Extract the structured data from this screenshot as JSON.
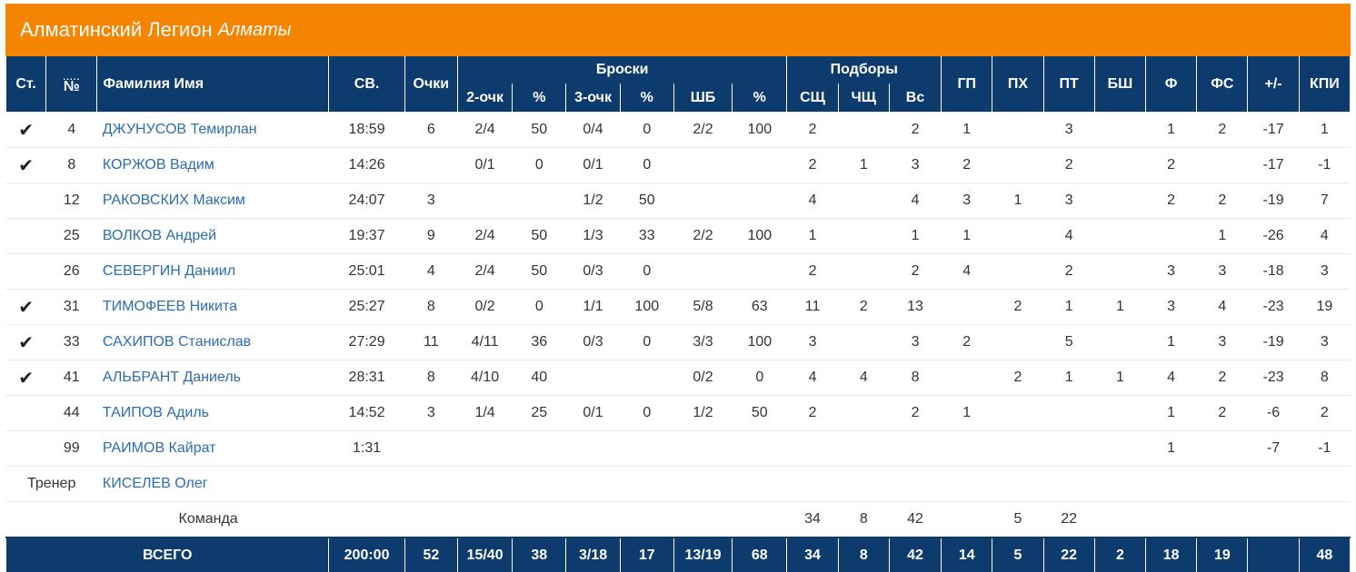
{
  "header": {
    "team": "Алматинский Легион",
    "city": "Алматы"
  },
  "columns": {
    "st": "Ст.",
    "num": "№",
    "name": "Фамилия Имя",
    "min": "СВ.",
    "pts": "Очки",
    "throws": "Броски",
    "rebounds": "Подборы",
    "two": "2-очк",
    "two_pct": "%",
    "three": "3-очк",
    "three_pct": "%",
    "ft": "ШБ",
    "ft_pct": "%",
    "off": "СЩ",
    "def": "ЧЩ",
    "tot": "Вс",
    "ast": "ГП",
    "stl": "ПХ",
    "to": "ПТ",
    "blk": "БШ",
    "pf": "Ф",
    "fd": "ФС",
    "pm": "+/-",
    "eff": "КПИ"
  },
  "players": [
    {
      "st": "✔",
      "num": "4",
      "name": "ДЖУНУСОВ Темирлан",
      "min": "18:59",
      "pts": "6",
      "two": "2/4",
      "two_pct": "50",
      "three": "0/4",
      "three_pct": "0",
      "ft": "2/2",
      "ft_pct": "100",
      "off": "2",
      "def": "",
      "tot": "2",
      "ast": "1",
      "stl": "",
      "to": "3",
      "blk": "",
      "pf": "1",
      "fd": "2",
      "pm": "-17",
      "eff": "1"
    },
    {
      "st": "✔",
      "num": "8",
      "name": "КОРЖОВ Вадим",
      "min": "14:26",
      "pts": "",
      "two": "0/1",
      "two_pct": "0",
      "three": "0/1",
      "three_pct": "0",
      "ft": "",
      "ft_pct": "",
      "off": "2",
      "def": "1",
      "tot": "3",
      "ast": "2",
      "stl": "",
      "to": "2",
      "blk": "",
      "pf": "2",
      "fd": "",
      "pm": "-17",
      "eff": "-1"
    },
    {
      "st": "",
      "num": "12",
      "name": "РАКОВСКИХ Максим",
      "min": "24:07",
      "pts": "3",
      "two": "",
      "two_pct": "",
      "three": "1/2",
      "three_pct": "50",
      "ft": "",
      "ft_pct": "",
      "off": "4",
      "def": "",
      "tot": "4",
      "ast": "3",
      "stl": "1",
      "to": "3",
      "blk": "",
      "pf": "2",
      "fd": "2",
      "pm": "-19",
      "eff": "7"
    },
    {
      "st": "",
      "num": "25",
      "name": "ВОЛКОВ Андрей",
      "min": "19:37",
      "pts": "9",
      "two": "2/4",
      "two_pct": "50",
      "three": "1/3",
      "three_pct": "33",
      "ft": "2/2",
      "ft_pct": "100",
      "off": "1",
      "def": "",
      "tot": "1",
      "ast": "1",
      "stl": "",
      "to": "4",
      "blk": "",
      "pf": "",
      "fd": "1",
      "pm": "-26",
      "eff": "4"
    },
    {
      "st": "",
      "num": "26",
      "name": "СЕВЕРГИН Даниил",
      "min": "25:01",
      "pts": "4",
      "two": "2/4",
      "two_pct": "50",
      "three": "0/3",
      "three_pct": "0",
      "ft": "",
      "ft_pct": "",
      "off": "2",
      "def": "",
      "tot": "2",
      "ast": "4",
      "stl": "",
      "to": "2",
      "blk": "",
      "pf": "3",
      "fd": "3",
      "pm": "-18",
      "eff": "3"
    },
    {
      "st": "✔",
      "num": "31",
      "name": "ТИМОФЕЕВ Никита",
      "min": "25:27",
      "pts": "8",
      "two": "0/2",
      "two_pct": "0",
      "three": "1/1",
      "three_pct": "100",
      "ft": "5/8",
      "ft_pct": "63",
      "off": "11",
      "def": "2",
      "tot": "13",
      "ast": "",
      "stl": "2",
      "to": "1",
      "blk": "1",
      "pf": "3",
      "fd": "4",
      "pm": "-23",
      "eff": "19"
    },
    {
      "st": "✔",
      "num": "33",
      "name": "САХИПОВ Станислав",
      "min": "27:29",
      "pts": "11",
      "two": "4/11",
      "two_pct": "36",
      "three": "0/3",
      "three_pct": "0",
      "ft": "3/3",
      "ft_pct": "100",
      "off": "3",
      "def": "",
      "tot": "3",
      "ast": "2",
      "stl": "",
      "to": "5",
      "blk": "",
      "pf": "1",
      "fd": "3",
      "pm": "-19",
      "eff": "3"
    },
    {
      "st": "✔",
      "num": "41",
      "name": "АЛЬБРАНТ Даниель",
      "min": "28:31",
      "pts": "8",
      "two": "4/10",
      "two_pct": "40",
      "three": "",
      "three_pct": "",
      "ft": "0/2",
      "ft_pct": "0",
      "off": "4",
      "def": "4",
      "tot": "8",
      "ast": "",
      "stl": "2",
      "to": "1",
      "blk": "1",
      "pf": "4",
      "fd": "2",
      "pm": "-23",
      "eff": "8"
    },
    {
      "st": "",
      "num": "44",
      "name": "ТАИПОВ Адиль",
      "min": "14:52",
      "pts": "3",
      "two": "1/4",
      "two_pct": "25",
      "three": "0/1",
      "three_pct": "0",
      "ft": "1/2",
      "ft_pct": "50",
      "off": "2",
      "def": "",
      "tot": "2",
      "ast": "1",
      "stl": "",
      "to": "",
      "blk": "",
      "pf": "1",
      "fd": "2",
      "pm": "-6",
      "eff": "2"
    },
    {
      "st": "",
      "num": "99",
      "name": "РАИМОВ Кайрат",
      "min": "1:31",
      "pts": "",
      "two": "",
      "two_pct": "",
      "three": "",
      "three_pct": "",
      "ft": "",
      "ft_pct": "",
      "off": "",
      "def": "",
      "tot": "",
      "ast": "",
      "stl": "",
      "to": "",
      "blk": "",
      "pf": "1",
      "fd": "",
      "pm": "-7",
      "eff": "-1"
    }
  ],
  "coach": {
    "label": "Тренер",
    "name": "КИСЕЛЕВ Олег"
  },
  "team_row": {
    "label": "Команда",
    "off": "34",
    "def": "8",
    "tot": "42",
    "stl": "5",
    "to": "22"
  },
  "totals": {
    "label": "ВСЕГО",
    "min": "200:00",
    "pts": "52",
    "two": "15/40",
    "two_pct": "38",
    "three": "3/18",
    "three_pct": "17",
    "ft": "13/19",
    "ft_pct": "68",
    "off": "34",
    "def": "8",
    "tot": "42",
    "ast": "14",
    "stl": "5",
    "to": "22",
    "blk": "2",
    "pf": "18",
    "fd": "19",
    "pm": "",
    "eff": "48"
  }
}
